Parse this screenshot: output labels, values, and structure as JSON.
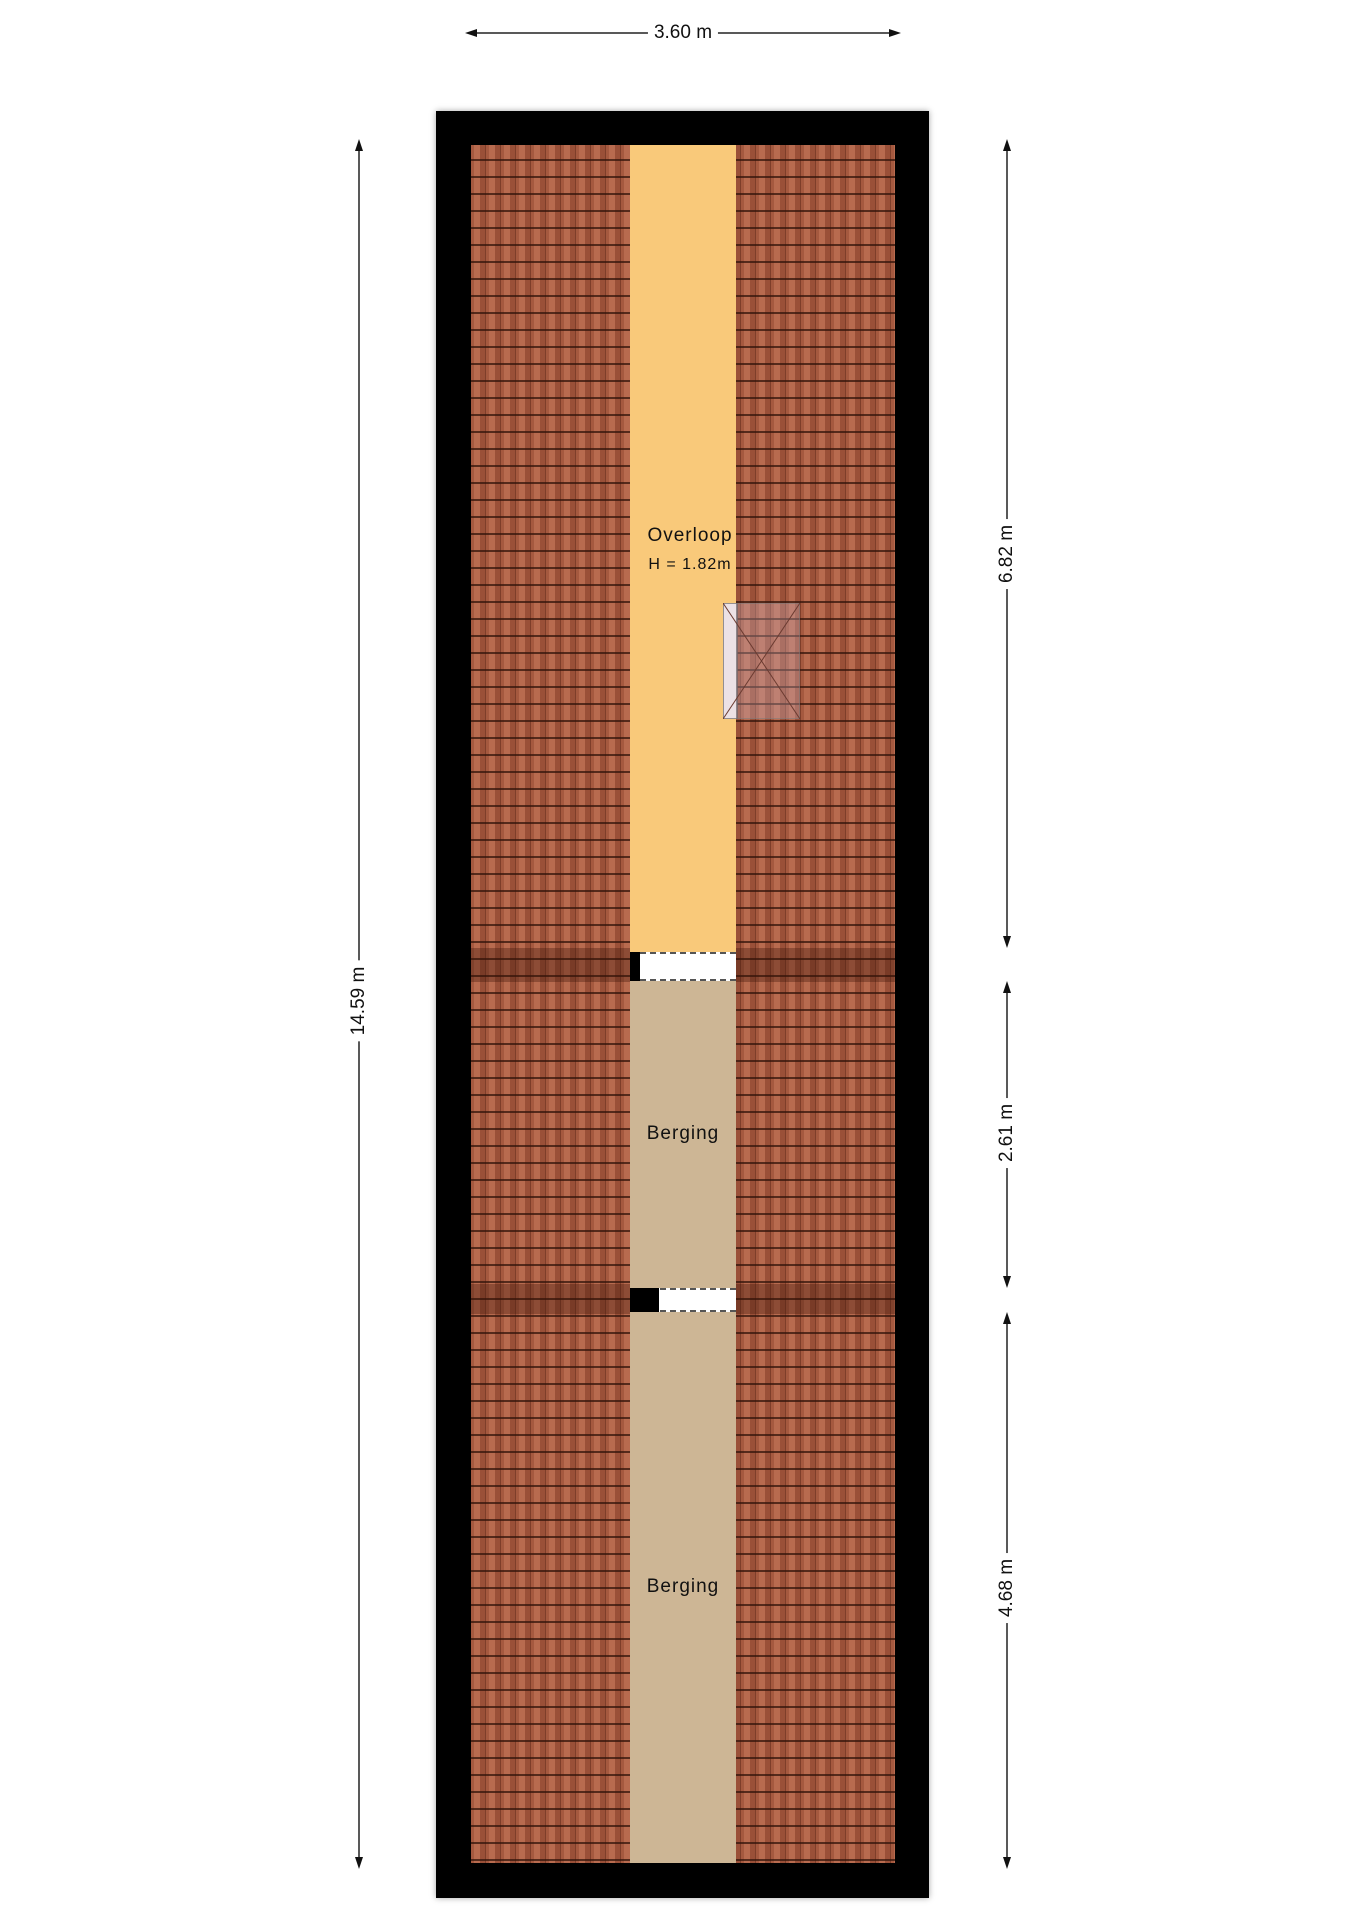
{
  "dimensions": {
    "width_top": "3.60 m",
    "height_total": "14.59 m",
    "segment_overloop": "6.82 m",
    "segment_berging_1": "2.61 m",
    "segment_berging_2": "4.68 m"
  },
  "rooms": [
    {
      "name": "Overloop",
      "height": "H = 1.82m",
      "color": "#f9c97a"
    },
    {
      "name": "Berging",
      "color": "#cdb695"
    },
    {
      "name": "Berging",
      "color": "#cdb695"
    }
  ],
  "colors": {
    "wall": "#000000",
    "roof_tiles": "#a5593f"
  }
}
